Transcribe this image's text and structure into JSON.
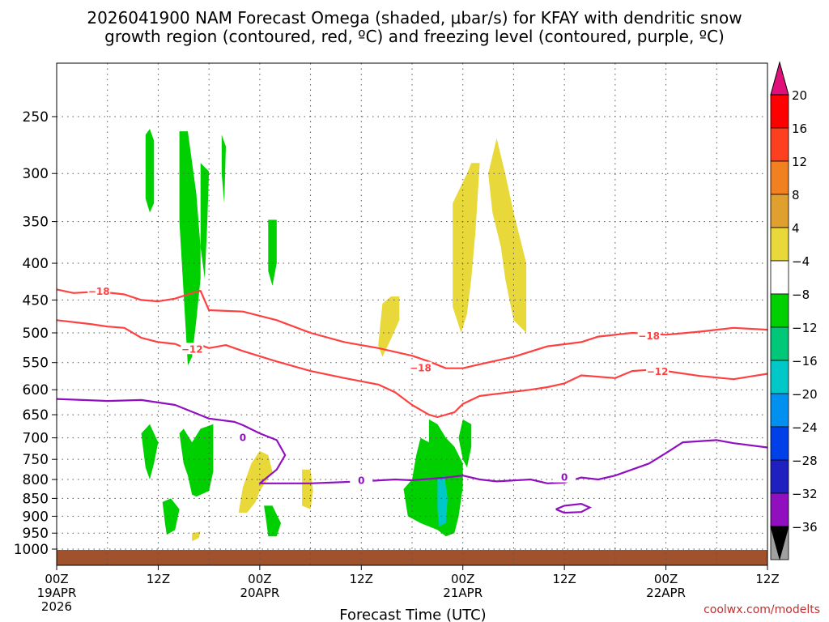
{
  "chart_data": {
    "type": "time-height cross-section",
    "title_line1": "2026041900 NAM Forecast Omega (shaded, μbar/s) for KFAY with dendritic snow",
    "title_line2": "growth region (contoured, red, ºC) and freezing level (contoured, purple, ºC)",
    "xlabel": "Forecast Time (UTC)",
    "credit": "coolwx.com/modelts",
    "x_unit": "forecast hour",
    "xlim": [
      0,
      84
    ],
    "ylim": [
      1000,
      200
    ],
    "y_scale": "log-pressure (hPa)",
    "grid": true,
    "x_ticks": [
      {
        "hour": 0,
        "l1": "00Z",
        "l2": "19APR",
        "l3": "2026"
      },
      {
        "hour": 12,
        "l1": "12Z",
        "l2": "",
        "l3": ""
      },
      {
        "hour": 24,
        "l1": "00Z",
        "l2": "20APR",
        "l3": ""
      },
      {
        "hour": 36,
        "l1": "12Z",
        "l2": "",
        "l3": ""
      },
      {
        "hour": 48,
        "l1": "00Z",
        "l2": "21APR",
        "l3": ""
      },
      {
        "hour": 60,
        "l1": "12Z",
        "l2": "",
        "l3": ""
      },
      {
        "hour": 72,
        "l1": "00Z",
        "l2": "22APR",
        "l3": ""
      },
      {
        "hour": 84,
        "l1": "12Z",
        "l2": "",
        "l3": ""
      }
    ],
    "y_ticks": [
      250,
      300,
      350,
      400,
      450,
      500,
      550,
      600,
      650,
      700,
      750,
      800,
      850,
      900,
      950,
      1000
    ],
    "colorbar": {
      "ticks": [
        "20",
        "16",
        "12",
        "8",
        "4",
        "−4",
        "−8",
        "−12",
        "−16",
        "−20",
        "−24",
        "−28",
        "−32",
        "−36"
      ],
      "colors": [
        "#ff0000",
        "#ff4020",
        "#f08020",
        "#e0a030",
        "#e8d83a",
        "#ffffff",
        "#00d000",
        "#00c878",
        "#00c8c8",
        "#0090f0",
        "#0040e8",
        "#2020c0",
        "#9010c0",
        "#a0a0a0"
      ],
      "top_arrow": "#e0107a",
      "bottom_arrow": "#000000"
    },
    "ground_color": "#a0522d",
    "series": [
      {
        "name": "-18",
        "kind": "dendritic-upper",
        "color": "#ff4040",
        "label": "−18",
        "points": [
          [
            0,
            435
          ],
          [
            2,
            440
          ],
          [
            5,
            438
          ],
          [
            8,
            442
          ],
          [
            10,
            450
          ],
          [
            12,
            452
          ],
          [
            14,
            448
          ],
          [
            16,
            440
          ],
          [
            17,
            437
          ],
          [
            18,
            465
          ],
          [
            22,
            467
          ],
          [
            26,
            480
          ],
          [
            30,
            500
          ],
          [
            34,
            515
          ],
          [
            38,
            525
          ],
          [
            42,
            538
          ],
          [
            44,
            548
          ],
          [
            46,
            560
          ],
          [
            48,
            560
          ],
          [
            50,
            553
          ],
          [
            54,
            540
          ],
          [
            58,
            522
          ],
          [
            62,
            515
          ],
          [
            64,
            506
          ],
          [
            68,
            500
          ],
          [
            72,
            503
          ],
          [
            76,
            498
          ],
          [
            80,
            492
          ],
          [
            84,
            495
          ]
        ],
        "labels": [
          [
            5,
            438
          ],
          [
            43,
            560
          ],
          [
            70,
            505
          ]
        ]
      },
      {
        "name": "-12",
        "kind": "dendritic-lower",
        "color": "#ff4040",
        "label": "−12",
        "points": [
          [
            0,
            480
          ],
          [
            4,
            486
          ],
          [
            6,
            490
          ],
          [
            8,
            492
          ],
          [
            10,
            508
          ],
          [
            12,
            515
          ],
          [
            14,
            518
          ],
          [
            16,
            530
          ],
          [
            17,
            520
          ],
          [
            18,
            525
          ],
          [
            20,
            520
          ],
          [
            22,
            530
          ],
          [
            26,
            548
          ],
          [
            30,
            565
          ],
          [
            34,
            578
          ],
          [
            38,
            590
          ],
          [
            40,
            605
          ],
          [
            42,
            630
          ],
          [
            44,
            650
          ],
          [
            45,
            655
          ],
          [
            47,
            645
          ],
          [
            48,
            628
          ],
          [
            50,
            612
          ],
          [
            56,
            600
          ],
          [
            58,
            595
          ],
          [
            60,
            588
          ],
          [
            62,
            573
          ],
          [
            66,
            578
          ],
          [
            68,
            565
          ],
          [
            70,
            563
          ],
          [
            72,
            565
          ],
          [
            76,
            574
          ],
          [
            80,
            580
          ],
          [
            82,
            575
          ],
          [
            84,
            570
          ]
        ],
        "labels": [
          [
            16,
            527
          ],
          [
            71,
            566
          ]
        ]
      },
      {
        "name": "0",
        "kind": "freezing-level",
        "color": "#9010c0",
        "label": "0",
        "points": [
          [
            0,
            618
          ],
          [
            6,
            622
          ],
          [
            10,
            620
          ],
          [
            14,
            630
          ],
          [
            18,
            658
          ],
          [
            21,
            665
          ],
          [
            22,
            672
          ],
          [
            24,
            690
          ],
          [
            26,
            705
          ],
          [
            27,
            740
          ],
          [
            26,
            775
          ],
          [
            24,
            810
          ],
          [
            30,
            810
          ],
          [
            36,
            805
          ],
          [
            40,
            800
          ],
          [
            42,
            802
          ],
          [
            46,
            795
          ],
          [
            48,
            790
          ],
          [
            50,
            800
          ],
          [
            52,
            805
          ],
          [
            56,
            800
          ],
          [
            58,
            810
          ],
          [
            60,
            808
          ],
          [
            62,
            795
          ],
          [
            64,
            800
          ],
          [
            66,
            790
          ],
          [
            70,
            760
          ],
          [
            72,
            735
          ],
          [
            74,
            710
          ],
          [
            78,
            705
          ],
          [
            80,
            712
          ],
          [
            84,
            722
          ]
        ],
        "labels": [
          [
            22,
            700
          ],
          [
            36,
            803
          ],
          [
            60,
            795
          ]
        ]
      }
    ],
    "closed_contours": [
      {
        "name": "0",
        "color": "#9010c0",
        "points": [
          [
            59,
            880
          ],
          [
            60,
            870
          ],
          [
            62,
            865
          ],
          [
            63,
            875
          ],
          [
            62,
            888
          ],
          [
            60,
            890
          ],
          [
            59,
            880
          ]
        ]
      }
    ],
    "omega_regions": [
      {
        "level": -8,
        "color": "#00d000",
        "points": [
          [
            10.5,
            265
          ],
          [
            11,
            260
          ],
          [
            11.5,
            270
          ],
          [
            11.5,
            330
          ],
          [
            11,
            340
          ],
          [
            10.5,
            325
          ]
        ]
      },
      {
        "level": -8,
        "color": "#00d000",
        "points": [
          [
            14.5,
            262
          ],
          [
            15.5,
            262
          ],
          [
            16.5,
            320
          ],
          [
            17,
            380
          ],
          [
            17,
            420
          ],
          [
            16.5,
            480
          ],
          [
            16,
            540
          ],
          [
            15.5,
            555
          ],
          [
            15,
            440
          ],
          [
            14.5,
            350
          ]
        ]
      },
      {
        "level": -8,
        "color": "#00d000",
        "points": [
          [
            17,
            290
          ],
          [
            18,
            298
          ],
          [
            17.8,
            350
          ],
          [
            17.5,
            420
          ],
          [
            17,
            380
          ]
        ]
      },
      {
        "level": -8,
        "color": "#00d000",
        "points": [
          [
            19.5,
            265
          ],
          [
            20,
            275
          ],
          [
            19.8,
            330
          ],
          [
            19.5,
            300
          ]
        ]
      },
      {
        "level": -8,
        "color": "#00d000",
        "points": [
          [
            25,
            348
          ],
          [
            26,
            348
          ],
          [
            26,
            400
          ],
          [
            25.5,
            430
          ],
          [
            25,
            410
          ]
        ]
      },
      {
        "level": -8,
        "color": "#00d000",
        "points": [
          [
            10,
            690
          ],
          [
            11,
            670
          ],
          [
            12,
            710
          ],
          [
            11.5,
            760
          ],
          [
            11,
            800
          ],
          [
            10.5,
            770
          ]
        ]
      },
      {
        "level": -8,
        "color": "#00d000",
        "points": [
          [
            14.5,
            690
          ],
          [
            15,
            680
          ],
          [
            16,
            710
          ],
          [
            17,
            680
          ],
          [
            18.5,
            670
          ],
          [
            18.5,
            780
          ],
          [
            18,
            830
          ],
          [
            16.5,
            845
          ],
          [
            16,
            840
          ],
          [
            15.5,
            790
          ],
          [
            15,
            760
          ]
        ]
      },
      {
        "level": -8,
        "color": "#00d000",
        "points": [
          [
            12.5,
            860
          ],
          [
            13.5,
            850
          ],
          [
            14.5,
            880
          ],
          [
            14,
            940
          ],
          [
            13,
            955
          ],
          [
            12.8,
            920
          ]
        ]
      },
      {
        "level": -8,
        "color": "#00d000",
        "points": [
          [
            24.5,
            870
          ],
          [
            25.5,
            870
          ],
          [
            26.5,
            920
          ],
          [
            26,
            960
          ],
          [
            25,
            960
          ],
          [
            24.8,
            920
          ]
        ]
      },
      {
        "level": -8,
        "color": "#00d000",
        "points": [
          [
            41,
            825
          ],
          [
            42,
            800
          ],
          [
            42.5,
            740
          ],
          [
            43,
            700
          ],
          [
            44,
            710
          ],
          [
            44,
            660
          ],
          [
            45,
            670
          ],
          [
            46,
            700
          ],
          [
            47,
            720
          ],
          [
            48,
            760
          ],
          [
            48,
            820
          ],
          [
            47.5,
            900
          ],
          [
            47,
            950
          ],
          [
            46,
            960
          ],
          [
            45,
            940
          ],
          [
            43,
            920
          ],
          [
            41.5,
            900
          ]
        ]
      },
      {
        "level": -8,
        "color": "#00d000",
        "points": [
          [
            47.5,
            700
          ],
          [
            48,
            660
          ],
          [
            49,
            670
          ],
          [
            49,
            720
          ],
          [
            48.5,
            770
          ],
          [
            48,
            750
          ]
        ]
      },
      {
        "level": -12,
        "color": "#00c8c8",
        "points": [
          [
            45,
            800
          ],
          [
            45.8,
            790
          ],
          [
            46.2,
            850
          ],
          [
            46,
            920
          ],
          [
            45.2,
            930
          ],
          [
            45,
            880
          ]
        ]
      },
      {
        "level": 4,
        "color": "#e8d83a",
        "points": [
          [
            38.5,
            455
          ],
          [
            39.5,
            445
          ],
          [
            40.5,
            445
          ],
          [
            40.5,
            480
          ],
          [
            39.5,
            510
          ],
          [
            38.5,
            540
          ],
          [
            38,
            520
          ]
        ]
      },
      {
        "level": 4,
        "color": "#e8d83a",
        "points": [
          [
            48.5,
            300
          ],
          [
            49,
            290
          ],
          [
            50,
            290
          ],
          [
            49.5,
            360
          ],
          [
            49,
            420
          ],
          [
            48.5,
            470
          ],
          [
            47.8,
            500
          ],
          [
            46.8,
            460
          ],
          [
            46.8,
            330
          ]
        ]
      },
      {
        "level": 4,
        "color": "#e8d83a",
        "points": [
          [
            51,
            300
          ],
          [
            52,
            268
          ],
          [
            53,
            300
          ],
          [
            54,
            340
          ],
          [
            55.5,
            400
          ],
          [
            55.5,
            500
          ],
          [
            54,
            480
          ],
          [
            53,
            420
          ],
          [
            52.5,
            380
          ],
          [
            51.5,
            340
          ]
        ]
      },
      {
        "level": 4,
        "color": "#e8d83a",
        "points": [
          [
            23,
            760
          ],
          [
            24,
            730
          ],
          [
            25,
            740
          ],
          [
            25.5,
            780
          ],
          [
            24,
            830
          ],
          [
            23.5,
            860
          ],
          [
            22.5,
            890
          ],
          [
            21.5,
            890
          ],
          [
            22,
            820
          ]
        ]
      },
      {
        "level": 4,
        "color": "#e8d83a",
        "points": [
          [
            29,
            775
          ],
          [
            30,
            775
          ],
          [
            30.3,
            830
          ],
          [
            30,
            880
          ],
          [
            29,
            870
          ]
        ]
      },
      {
        "level": 4,
        "color": "#e8d83a",
        "points": [
          [
            16,
            950
          ],
          [
            17,
            945
          ],
          [
            16.8,
            965
          ],
          [
            16,
            975
          ]
        ]
      }
    ]
  }
}
